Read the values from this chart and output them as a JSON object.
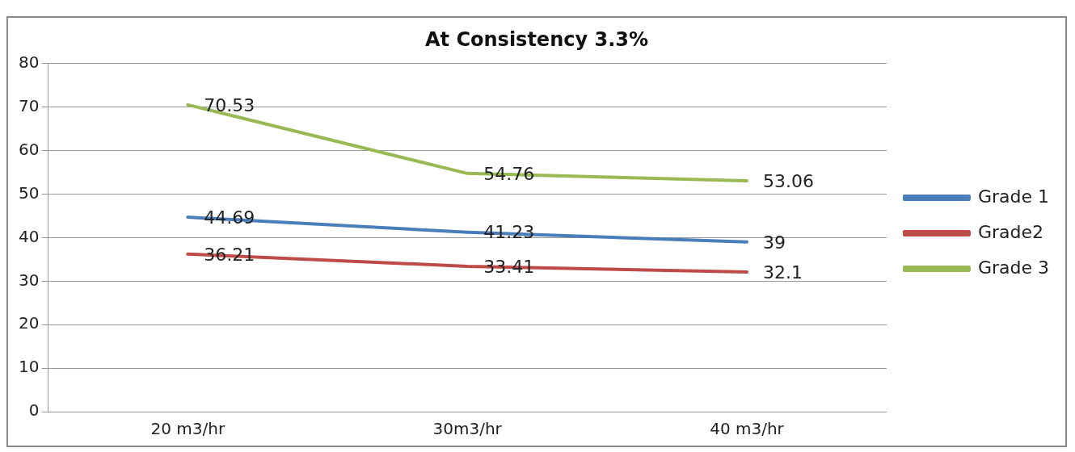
{
  "chart_data": {
    "type": "line",
    "title": "At Consistency 3.3%",
    "categories": [
      "20 m3/hr",
      "30m3/hr",
      "40 m3/hr"
    ],
    "series": [
      {
        "name": "Grade 1",
        "color": "#4a7ebb",
        "values": [
          44.69,
          41.23,
          39
        ]
      },
      {
        "name": "Grade2",
        "color": "#be4b48",
        "values": [
          36.21,
          33.41,
          32.1
        ]
      },
      {
        "name": "Grade 3",
        "color": "#98b954",
        "values": [
          70.53,
          54.76,
          53.06
        ]
      }
    ],
    "ylim": [
      0,
      80
    ],
    "yticks": [
      0,
      10,
      20,
      30,
      40,
      50,
      60,
      70,
      80
    ],
    "grid": "y",
    "legend": "right",
    "marker": "none",
    "data_labels": true
  }
}
